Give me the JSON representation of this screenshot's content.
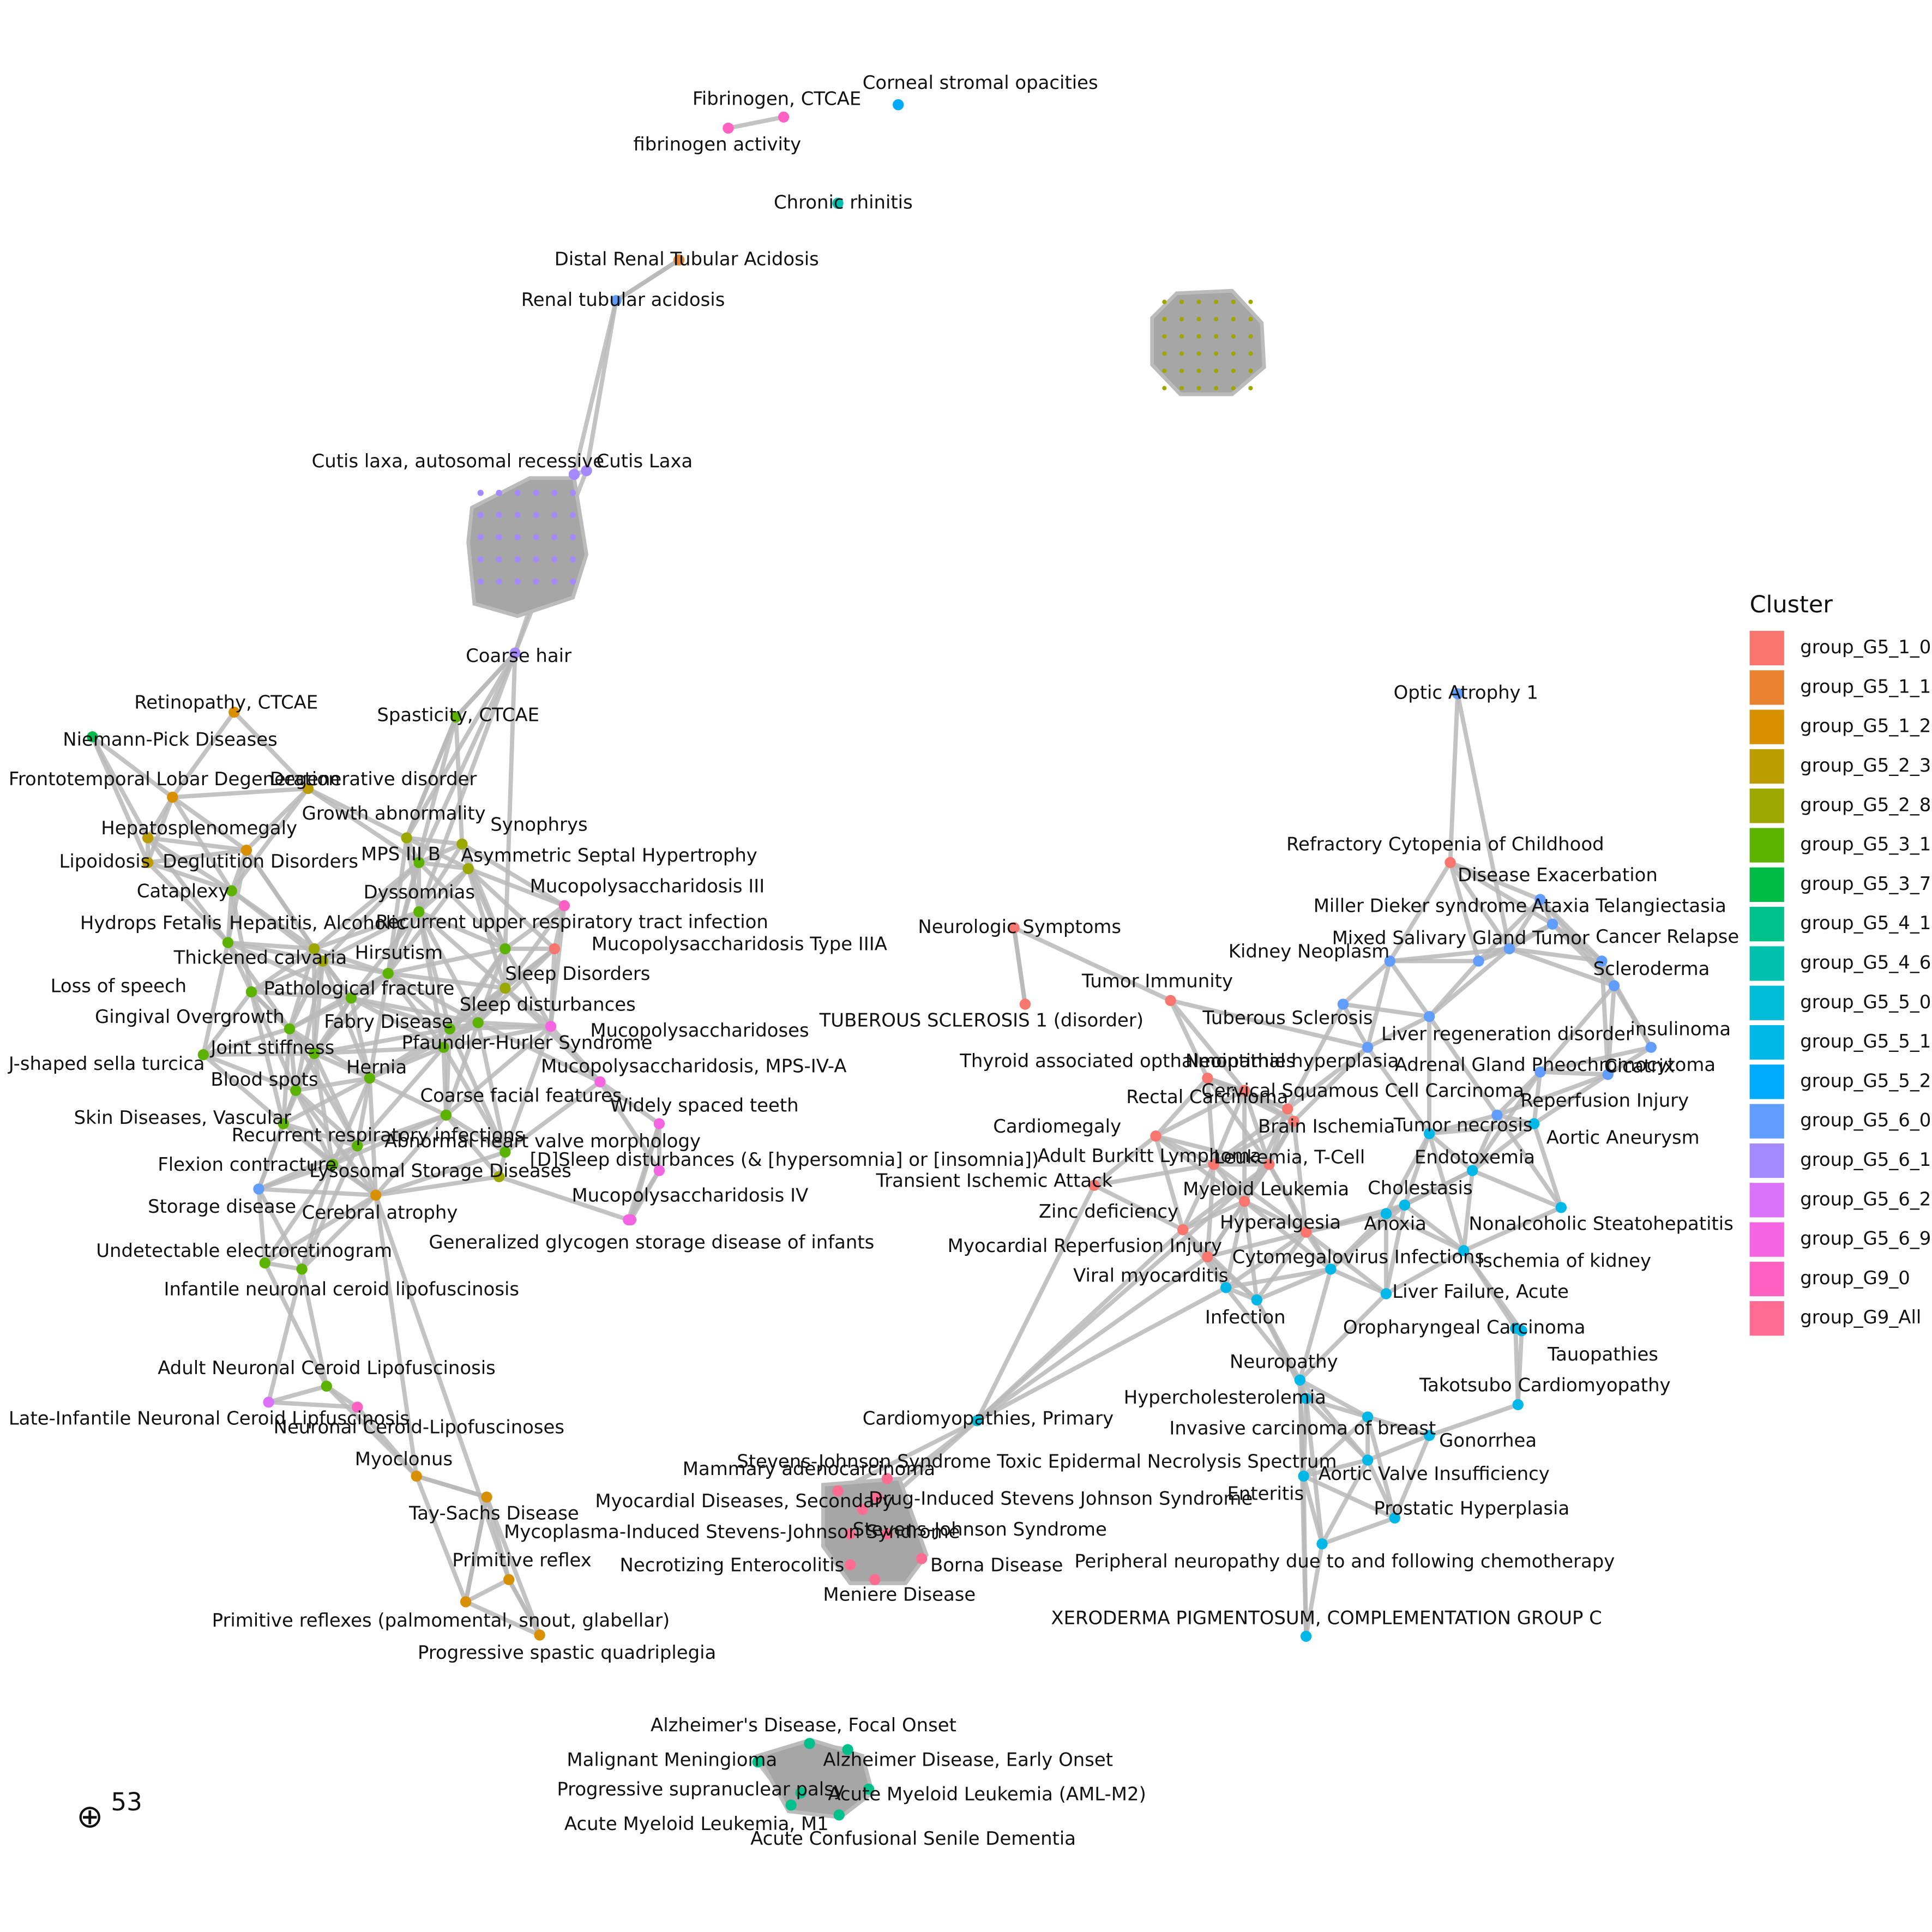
{
  "legend": {
    "title": "Cluster",
    "items": [
      {
        "name": "group_G5_1_0",
        "color": "#F8766D"
      },
      {
        "name": "group_G5_1_1",
        "color": "#EA8331"
      },
      {
        "name": "group_G5_1_2",
        "color": "#D89000"
      },
      {
        "name": "group_G5_2_3",
        "color": "#BB9D00"
      },
      {
        "name": "group_G5_2_8",
        "color": "#9CA700"
      },
      {
        "name": "group_G5_3_1",
        "color": "#5BB300"
      },
      {
        "name": "group_G5_3_7",
        "color": "#00BB45"
      },
      {
        "name": "group_G5_4_1",
        "color": "#00C08B"
      },
      {
        "name": "group_G5_4_6",
        "color": "#00C0AF"
      },
      {
        "name": "group_G5_5_0",
        "color": "#00BCD6"
      },
      {
        "name": "group_G5_5_1",
        "color": "#00B8E7"
      },
      {
        "name": "group_G5_5_2",
        "color": "#00ABFD"
      },
      {
        "name": "group_G5_6_0",
        "color": "#619CFF"
      },
      {
        "name": "group_G5_6_1",
        "color": "#A58AFF"
      },
      {
        "name": "group_G5_6_2",
        "color": "#DB72FB"
      },
      {
        "name": "group_G5_6_9",
        "color": "#F564E3"
      },
      {
        "name": "group_G9_0",
        "color": "#FF61C3"
      },
      {
        "name": "group_G9_All",
        "color": "#FF6C91"
      }
    ]
  },
  "nodes": [
    {
      "label": "Fibrinogen, CTCAE"
    },
    {
      "label": "fibrinogen activity"
    },
    {
      "label": "Corneal stromal opacities"
    },
    {
      "label": "Chronic rhinitis"
    },
    {
      "label": "Distal Renal Tubular Acidosis"
    },
    {
      "label": "Renal tubular acidosis"
    },
    {
      "label": "Cutis laxa, autosomal recessive"
    },
    {
      "label": "Cutis Laxa"
    },
    {
      "label": "Coarse hair"
    },
    {
      "label": "Spasticity, CTCAE"
    },
    {
      "label": "Retinopathy, CTCAE"
    },
    {
      "label": "Niemann-Pick Diseases"
    },
    {
      "label": "Frontotemporal Lobar Degeneration"
    },
    {
      "label": "Degenerative disorder"
    },
    {
      "label": "Growth abnormality"
    },
    {
      "label": "Hepatosplenomegaly"
    },
    {
      "label": "Synophrys"
    },
    {
      "label": "Lipoidosis"
    },
    {
      "label": "Deglutition Disorders"
    },
    {
      "label": "MPS III B"
    },
    {
      "label": "Asymmetric Septal Hypertrophy"
    },
    {
      "label": "Cataplexy"
    },
    {
      "label": "Dyssomnias"
    },
    {
      "label": "Mucopolysaccharidosis III"
    },
    {
      "label": "Hydrops Fetalis"
    },
    {
      "label": "Hepatitis, Alcoholic"
    },
    {
      "label": "Recurrent upper respiratory tract infection"
    },
    {
      "label": "Mucopolysaccharidosis Type IIIA"
    },
    {
      "label": "Thickened calvaria"
    },
    {
      "label": "Hirsutism"
    },
    {
      "label": "Loss of speech"
    },
    {
      "label": "Pathological fracture"
    },
    {
      "label": "Sleep Disorders"
    },
    {
      "label": "Gingival Overgrowth"
    },
    {
      "label": "Sleep disturbances"
    },
    {
      "label": "Fabry Disease"
    },
    {
      "label": "Mucopolysaccharidoses"
    },
    {
      "label": "Joint stiffness"
    },
    {
      "label": "Pfaundler-Hurler Syndrome"
    },
    {
      "label": "J-shaped sella turcica"
    },
    {
      "label": "Hernia"
    },
    {
      "label": "Mucopolysaccharidosis, MPS-IV-A"
    },
    {
      "label": "Blood spots"
    },
    {
      "label": "Coarse facial features"
    },
    {
      "label": "Widely spaced teeth"
    },
    {
      "label": "Skin Diseases, Vascular"
    },
    {
      "label": "Recurrent respiratory infections"
    },
    {
      "label": "Abnormal heart valve morphology"
    },
    {
      "label": "[D]Sleep disturbances (& [hypersomnia] or [insomnia])"
    },
    {
      "label": "Flexion contracture"
    },
    {
      "label": "Lysosomal Storage Diseases"
    },
    {
      "label": "Storage disease"
    },
    {
      "label": "Mucopolysaccharidosis IV"
    },
    {
      "label": "Cerebral atrophy"
    },
    {
      "label": "Generalized glycogen storage disease of infants"
    },
    {
      "label": "Undetectable electroretinogram"
    },
    {
      "label": "Infantile neuronal ceroid lipofuscinosis"
    },
    {
      "label": "Adult Neuronal Ceroid Lipofuscinosis"
    },
    {
      "label": "Late-Infantile Neuronal Ceroid Lipfuscinosis"
    },
    {
      "label": "Neuronal Ceroid-Lipofuscinoses"
    },
    {
      "label": "Myoclonus"
    },
    {
      "label": "Tay-Sachs Disease"
    },
    {
      "label": "Primitive reflex"
    },
    {
      "label": "Primitive reflexes (palmomental, snout, glabellar)"
    },
    {
      "label": "Progressive spastic quadriplegia"
    },
    {
      "label": "Cardiomyopathies, Primary"
    },
    {
      "label": "Stevens-Johnson Syndrome Toxic Epidermal Necrolysis Spectrum"
    },
    {
      "label": "Mammary adenocarcinoma"
    },
    {
      "label": "Myocardial Diseases, Secondary"
    },
    {
      "label": "Drug-Induced Stevens Johnson Syndrome"
    },
    {
      "label": "Mycoplasma-Induced Stevens-Johnson Syndrome"
    },
    {
      "label": "Stevens-Johnson Syndrome"
    },
    {
      "label": "Necrotizing Enterocolitis"
    },
    {
      "label": "Borna Disease"
    },
    {
      "label": "Meniere Disease"
    },
    {
      "label": "Alzheimer's Disease, Focal Onset"
    },
    {
      "label": "Malignant Meningioma"
    },
    {
      "label": "Alzheimer Disease, Early Onset"
    },
    {
      "label": "Progressive supranuclear palsy"
    },
    {
      "label": "Acute Myeloid Leukemia (AML-M2)"
    },
    {
      "label": "Acute Myeloid Leukemia, M1"
    },
    {
      "label": "Acute Confusional Senile Dementia"
    },
    {
      "label": "Optic Atrophy 1"
    },
    {
      "label": "Refractory Cytopenia of Childhood"
    },
    {
      "label": "Disease Exacerbation"
    },
    {
      "label": "Miller Dieker syndrome"
    },
    {
      "label": "Ataxia Telangiectasia"
    },
    {
      "label": "Mixed Salivary Gland Tumor"
    },
    {
      "label": "Cancer Relapse"
    },
    {
      "label": "Neurologic Symptoms"
    },
    {
      "label": "Kidney Neoplasm"
    },
    {
      "label": "Scleroderma"
    },
    {
      "label": "Tumor Immunity"
    },
    {
      "label": "Tuberous Sclerosis"
    },
    {
      "label": "TUBEROUS SCLEROSIS 1 (disorder)"
    },
    {
      "label": "Liver regeneration disorder"
    },
    {
      "label": "insulinoma"
    },
    {
      "label": "Thyroid associated opthalmopathies"
    },
    {
      "label": "Neointimal hyperplasia"
    },
    {
      "label": "Adrenal Gland Pheochromocytoma"
    },
    {
      "label": "Cicatrix"
    },
    {
      "label": "Rectal Carcinoma"
    },
    {
      "label": "Cervical Squamous Cell Carcinoma"
    },
    {
      "label": "Reperfusion Injury"
    },
    {
      "label": "Cardiomegaly"
    },
    {
      "label": "Brain Ischemia"
    },
    {
      "label": "Tumor necrosis"
    },
    {
      "label": "Aortic Aneurysm"
    },
    {
      "label": "Adult Burkitt Lymphoma"
    },
    {
      "label": "Leukemia, T-Cell"
    },
    {
      "label": "Endotoxemia"
    },
    {
      "label": "Transient Ischemic Attack"
    },
    {
      "label": "Myeloid Leukemia"
    },
    {
      "label": "Cholestasis"
    },
    {
      "label": "Zinc deficiency"
    },
    {
      "label": "Hyperalgesia"
    },
    {
      "label": "Anoxia"
    },
    {
      "label": "Nonalcoholic Steatohepatitis"
    },
    {
      "label": "Myocardial Reperfusion Injury"
    },
    {
      "label": "Cytomegalovirus Infections"
    },
    {
      "label": "Ischemia of kidney"
    },
    {
      "label": "Viral myocarditis"
    },
    {
      "label": "Liver Failure, Acute"
    },
    {
      "label": "Infection"
    },
    {
      "label": "Oropharyngeal Carcinoma"
    },
    {
      "label": "Tauopathies"
    },
    {
      "label": "Neuropathy"
    },
    {
      "label": "Hypercholesterolemia"
    },
    {
      "label": "Takotsubo Cardiomyopathy"
    },
    {
      "label": "Invasive carcinoma of breast"
    },
    {
      "label": "Gonorrhea"
    },
    {
      "label": "Aortic Valve Insufficiency"
    },
    {
      "label": "Enteritis"
    },
    {
      "label": "Prostatic Hyperplasia"
    },
    {
      "label": "Peripheral neuropathy due to and following chemotherapy"
    },
    {
      "label": "XERODERMA PIGMENTOSUM, COMPLEMENTATION GROUP C"
    }
  ],
  "corner_label": "53"
}
